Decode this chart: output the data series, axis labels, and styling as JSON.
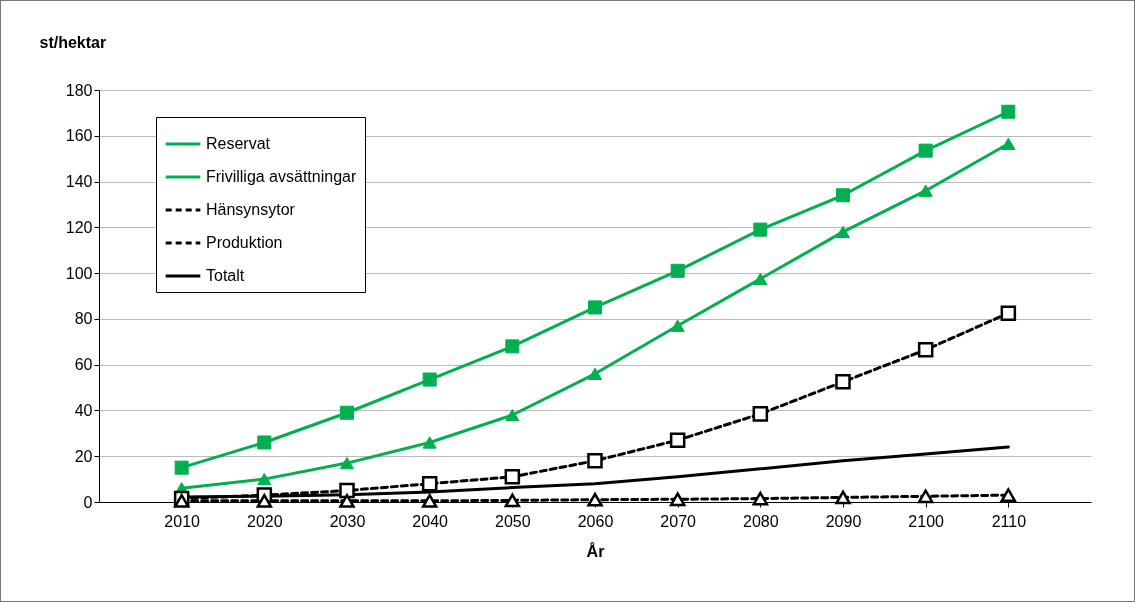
{
  "chart_data": {
    "type": "line",
    "ylabel": "st/hektar",
    "xlabel": "År",
    "x": [
      2010,
      2020,
      2030,
      2040,
      2050,
      2060,
      2070,
      2080,
      2090,
      2100,
      2110
    ],
    "xlim": [
      2000,
      2120
    ],
    "xticks": [
      2010,
      2020,
      2030,
      2040,
      2050,
      2060,
      2070,
      2080,
      2090,
      2100,
      2110
    ],
    "ylim": [
      0,
      180
    ],
    "yticks": [
      0,
      20,
      40,
      60,
      80,
      100,
      120,
      140,
      160,
      180
    ],
    "grid": "y",
    "legend": "top left",
    "series": [
      {
        "name": "Reservat",
        "color": "#00b050",
        "marker": "square",
        "line_style": "solid",
        "values": [
          15,
          26,
          39,
          53.5,
          68,
          85,
          101,
          119,
          134,
          153.5,
          170.5
        ]
      },
      {
        "name": "Frivilliga avsättningar",
        "color": "#00b050",
        "marker": "triangle",
        "line_style": "solid",
        "values": [
          6,
          10,
          17,
          26,
          38,
          56,
          77,
          97.5,
          118,
          136,
          156.5
        ]
      },
      {
        "name": "Hänsynsytor",
        "color": "#000000",
        "marker": "square",
        "line_style": "dashed",
        "values": [
          1.5,
          3,
          5,
          8,
          11,
          18,
          27,
          38.5,
          52.5,
          66.5,
          82.5
        ]
      },
      {
        "name": "Produktion",
        "color": "#000000",
        "marker": "triangle",
        "line_style": "dashed",
        "values": [
          0.5,
          0.5,
          0.5,
          0.5,
          0.7,
          1,
          1.2,
          1.5,
          2,
          2.5,
          3
        ]
      },
      {
        "name": "Totalt",
        "color": "#000000",
        "marker": "none",
        "line_style": "solid",
        "values": [
          2.2,
          2.5,
          3.2,
          4.4,
          6.3,
          8,
          11,
          14.5,
          18,
          21,
          24
        ]
      }
    ]
  }
}
